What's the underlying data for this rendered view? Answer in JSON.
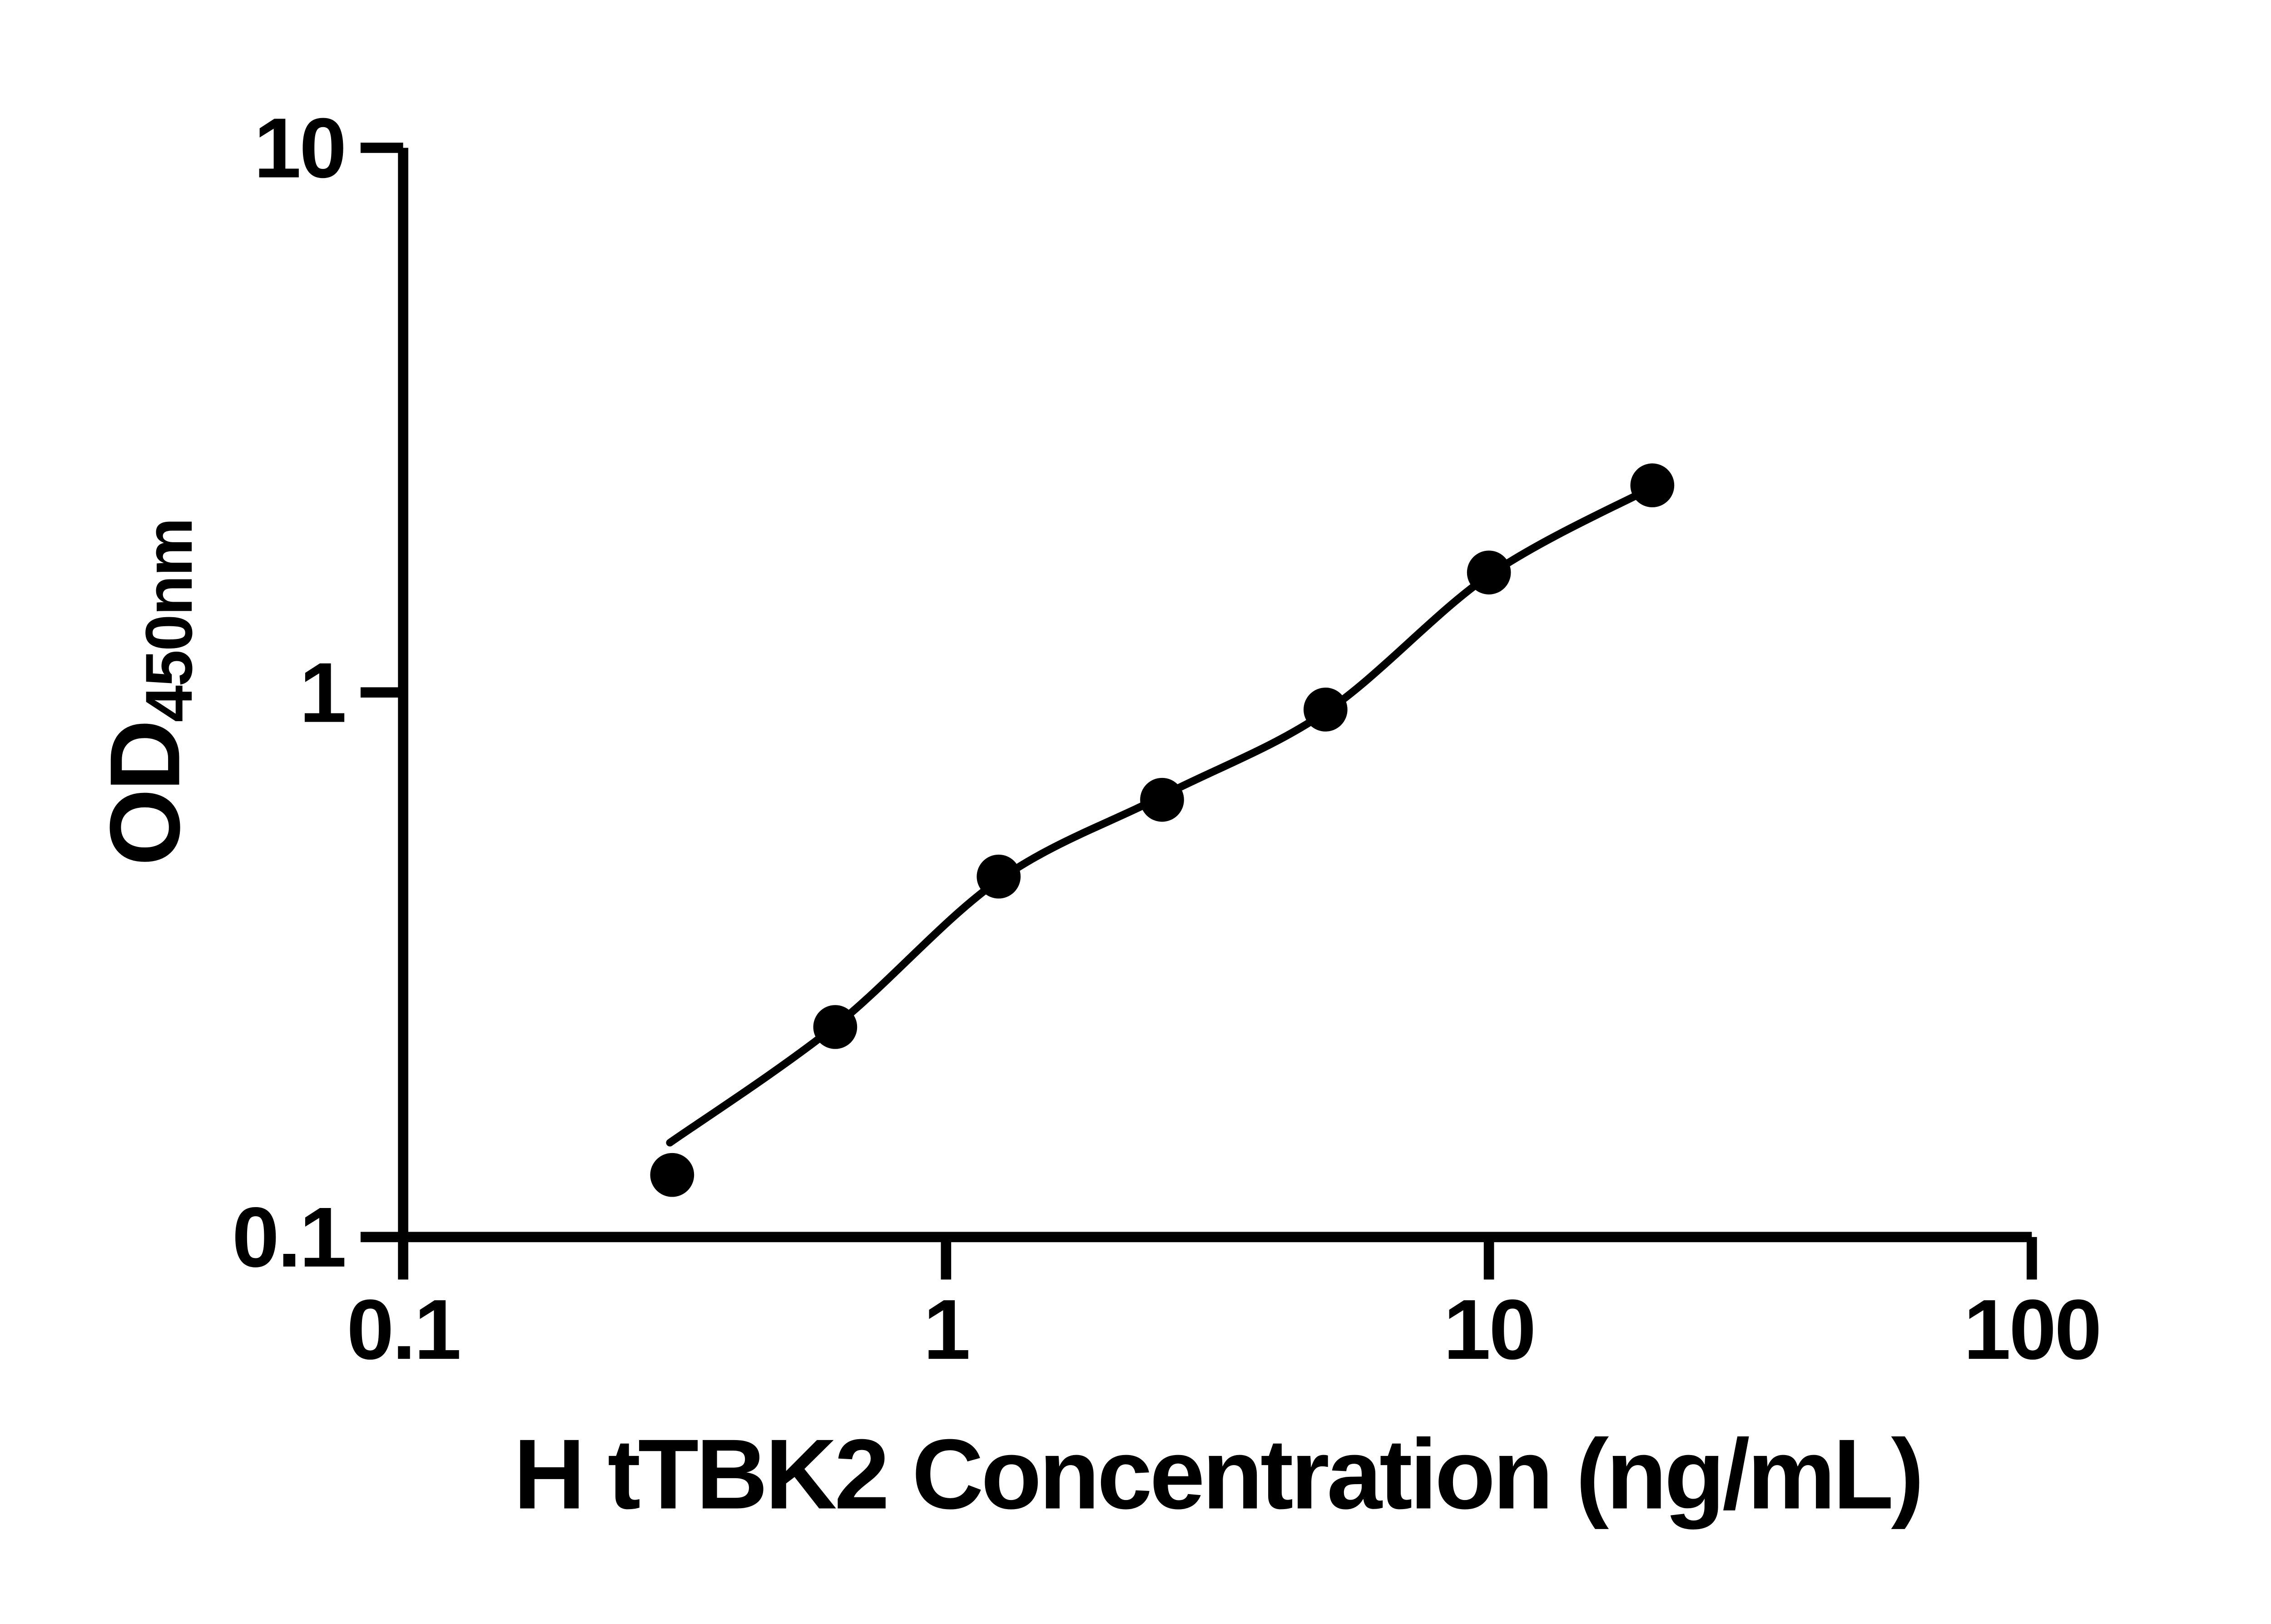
{
  "figure": {
    "background_color": "#ffffff",
    "ink_color": "#000000"
  },
  "chart_data": {
    "type": "scatter",
    "title": "",
    "xlabel": "H tTBK2 Concentration (ng/mL)",
    "ylabel": "OD",
    "ylabel_subscript": "450nm",
    "x_scale": "log",
    "y_scale": "log",
    "xlim": [
      0.1,
      100
    ],
    "ylim": [
      0.1,
      10
    ],
    "x_ticks": [
      0.1,
      1,
      10,
      100
    ],
    "x_tick_labels": [
      "0.1",
      "1",
      "10",
      "100"
    ],
    "y_ticks": [
      0.1,
      1,
      10
    ],
    "y_tick_labels": [
      "0.1",
      "1",
      "10"
    ],
    "grid": false,
    "legend": null,
    "series": [
      {
        "name": "standard-points",
        "type": "scatter",
        "marker": "filled-circle",
        "color": "#000000",
        "x": [
          0.313,
          0.625,
          1.25,
          2.5,
          5,
          10,
          20
        ],
        "y": [
          0.13,
          0.243,
          0.459,
          0.635,
          0.93,
          1.66,
          2.4
        ]
      },
      {
        "name": "fit-line",
        "type": "line",
        "color": "#000000",
        "x": [
          0.31,
          0.625,
          1.25,
          2.5,
          5,
          10,
          20
        ],
        "y": [
          0.149,
          0.244,
          0.452,
          0.645,
          0.92,
          1.64,
          2.38
        ]
      }
    ]
  }
}
